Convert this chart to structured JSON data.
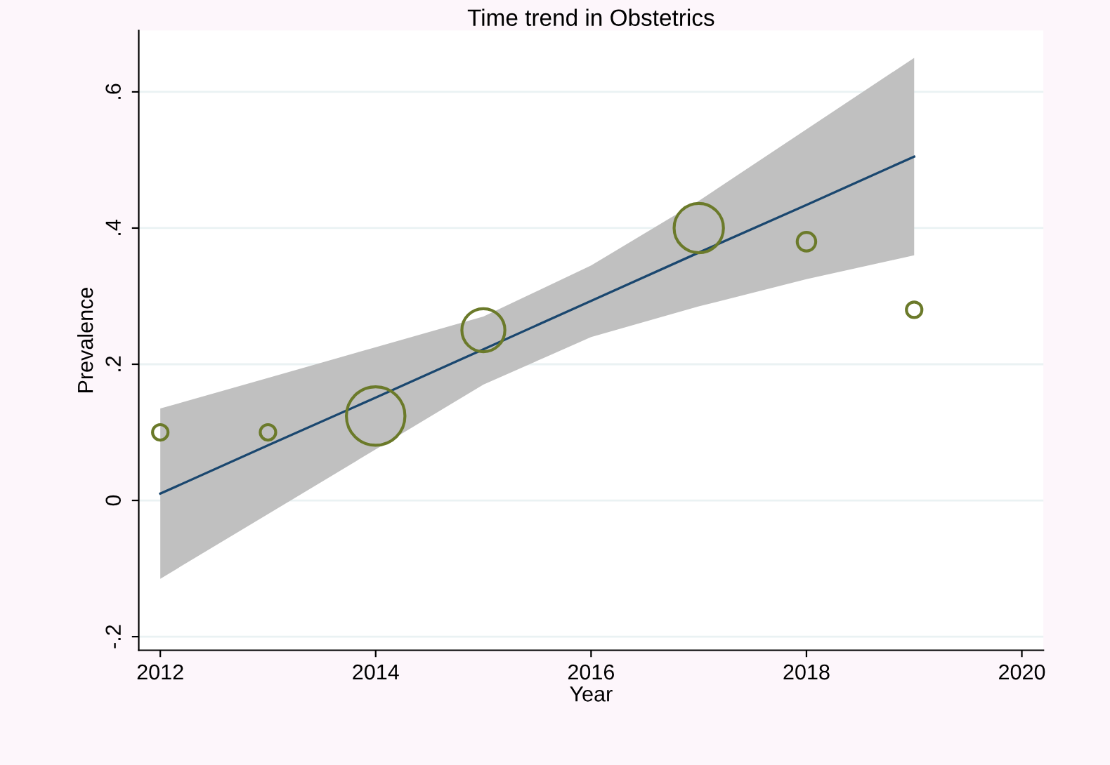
{
  "chart_data": {
    "type": "bubble",
    "title": "Time trend in Obstetrics",
    "xlabel": "Year",
    "ylabel": "Prevalence",
    "xlim": [
      2011.8,
      2020.2
    ],
    "xticks": [
      2012,
      2014,
      2016,
      2018,
      2020
    ],
    "ylim": [
      -0.22,
      0.69
    ],
    "yticks": [
      {
        "value": -0.2,
        "label": "-.2"
      },
      {
        "value": 0,
        "label": "0"
      },
      {
        "value": 0.2,
        "label": ".2"
      },
      {
        "value": 0.4,
        "label": ".4"
      },
      {
        "value": 0.6,
        "label": ".6"
      }
    ],
    "grid": "y",
    "series": [
      {
        "type": "line",
        "color": "#1a476f",
        "x": [
          2012,
          2013,
          2014,
          2015,
          2016,
          2017,
          2018,
          2019
        ],
        "values": [
          0.01,
          0.081,
          0.151,
          0.222,
          0.293,
          0.364,
          0.434,
          0.505
        ],
        "lower": [
          -0.115,
          -0.02,
          0.075,
          0.17,
          0.24,
          0.285,
          0.325,
          0.36
        ],
        "upper": [
          0.135,
          0.18,
          0.225,
          0.27,
          0.345,
          0.44,
          0.545,
          0.65
        ]
      },
      {
        "color": "#6b7a2a",
        "x": [
          2012,
          2013,
          2014,
          2015,
          2017,
          2018,
          2019
        ],
        "values": [
          0.1,
          0.1,
          0.124,
          0.25,
          0.4,
          0.38,
          0.28
        ],
        "sizes": [
          0.07,
          0.07,
          1,
          0.54,
          0.71,
          0.1,
          0.07
        ]
      }
    ]
  }
}
